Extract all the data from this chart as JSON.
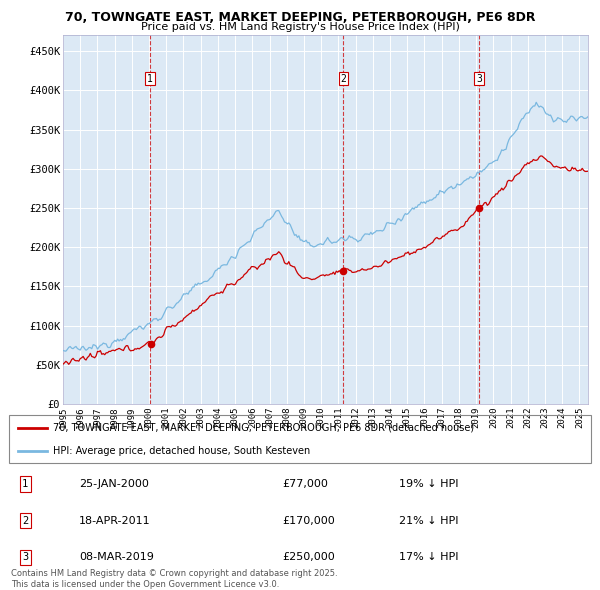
{
  "title_line1": "70, TOWNGATE EAST, MARKET DEEPING, PETERBOROUGH, PE6 8DR",
  "title_line2": "Price paid vs. HM Land Registry's House Price Index (HPI)",
  "legend_line1": "70, TOWNGATE EAST, MARKET DEEPING, PETERBOROUGH, PE6 8DR (detached house)",
  "legend_line2": "HPI: Average price, detached house, South Kesteven",
  "sale1_date": "25-JAN-2000",
  "sale1_price": 77000,
  "sale1_hpi": "19% ↓ HPI",
  "sale2_date": "18-APR-2011",
  "sale2_price": 170000,
  "sale2_hpi": "21% ↓ HPI",
  "sale3_date": "08-MAR-2019",
  "sale3_price": 250000,
  "sale3_hpi": "17% ↓ HPI",
  "ylim": [
    0,
    470000
  ],
  "hpi_color": "#7ab8e0",
  "price_color": "#cc0000",
  "bg_color": "#dce9f5",
  "grid_color": "#ffffff",
  "footnote": "Contains HM Land Registry data © Crown copyright and database right 2025.\nThis data is licensed under the Open Government Licence v3.0.",
  "sale1_year": 2000.07,
  "sale2_year": 2011.29,
  "sale3_year": 2019.18,
  "xmin": 1995.0,
  "xmax": 2025.5
}
